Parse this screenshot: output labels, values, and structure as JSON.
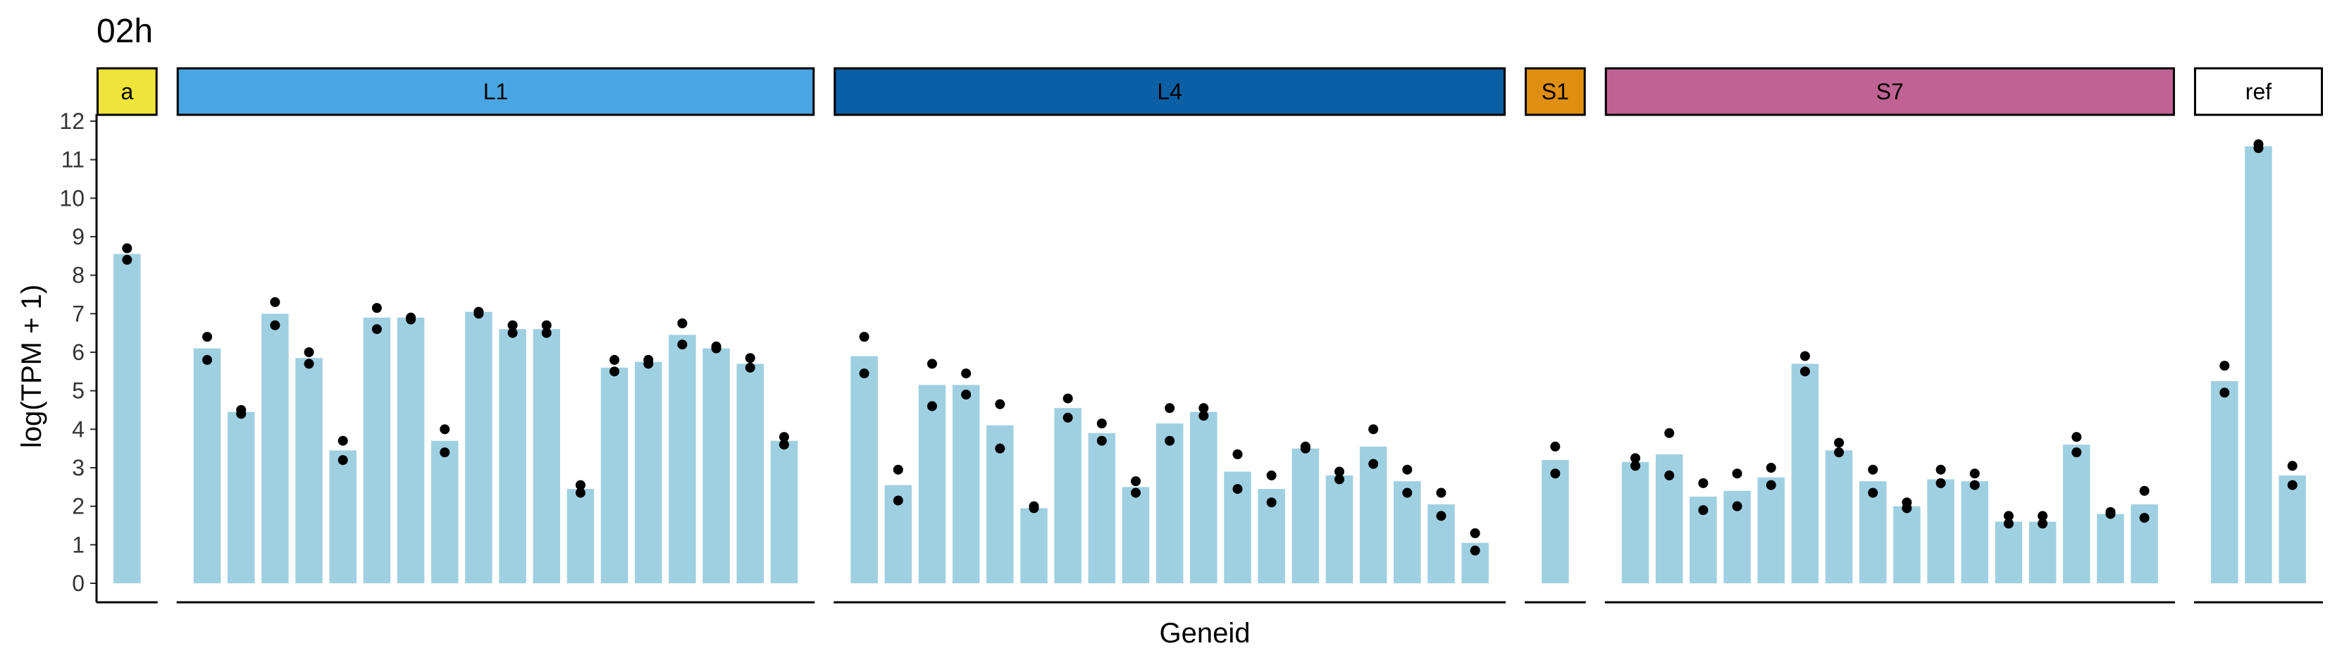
{
  "chart_data": {
    "type": "bar",
    "title": "02h",
    "xlabel": "Geneid",
    "ylabel": "log(TPM + 1)",
    "ylim": [
      0,
      12
    ],
    "yticks": [
      "0",
      "1",
      "2",
      "3",
      "4",
      "5",
      "6",
      "7",
      "8",
      "9",
      "10",
      "11",
      "12"
    ],
    "grid": false,
    "bar_color": "#9fd0e1",
    "point_color": "#000000",
    "panels": [
      {
        "label": "a",
        "strip_color": "#efe43a",
        "strip_text_color": "#000000",
        "bars": [
          {
            "value": 8.55,
            "points": [
              8.4,
              8.7
            ]
          }
        ]
      },
      {
        "label": "L1",
        "strip_color": "#49a6e3",
        "strip_text_color": "#000000",
        "bars": [
          {
            "value": 6.1,
            "points": [
              5.8,
              6.4
            ]
          },
          {
            "value": 4.45,
            "points": [
              4.4,
              4.5
            ]
          },
          {
            "value": 7.0,
            "points": [
              6.7,
              7.3
            ]
          },
          {
            "value": 5.85,
            "points": [
              5.7,
              6.0
            ]
          },
          {
            "value": 3.45,
            "points": [
              3.2,
              3.7
            ]
          },
          {
            "value": 6.9,
            "points": [
              6.6,
              7.15
            ]
          },
          {
            "value": 6.9,
            "points": [
              6.85,
              6.9
            ]
          },
          {
            "value": 3.7,
            "points": [
              3.4,
              4.0
            ]
          },
          {
            "value": 7.05,
            "points": [
              7.0,
              7.05
            ]
          },
          {
            "value": 6.6,
            "points": [
              6.5,
              6.7
            ]
          },
          {
            "value": 6.6,
            "points": [
              6.5,
              6.7
            ]
          },
          {
            "value": 2.45,
            "points": [
              2.35,
              2.55
            ]
          },
          {
            "value": 5.6,
            "points": [
              5.5,
              5.8
            ]
          },
          {
            "value": 5.75,
            "points": [
              5.7,
              5.8
            ]
          },
          {
            "value": 6.45,
            "points": [
              6.2,
              6.75
            ]
          },
          {
            "value": 6.1,
            "points": [
              6.1,
              6.15
            ]
          },
          {
            "value": 5.7,
            "points": [
              5.6,
              5.85
            ]
          },
          {
            "value": 3.7,
            "points": [
              3.6,
              3.8
            ]
          }
        ]
      },
      {
        "label": "L4",
        "strip_color": "#0b5fa4",
        "strip_text_color": "#000000",
        "bars": [
          {
            "value": 5.9,
            "points": [
              5.45,
              6.4
            ]
          },
          {
            "value": 2.55,
            "points": [
              2.15,
              2.95
            ]
          },
          {
            "value": 5.15,
            "points": [
              4.6,
              5.7
            ]
          },
          {
            "value": 5.15,
            "points": [
              4.9,
              5.45
            ]
          },
          {
            "value": 4.1,
            "points": [
              3.5,
              4.65
            ]
          },
          {
            "value": 1.95,
            "points": [
              1.95,
              2.0
            ]
          },
          {
            "value": 4.55,
            "points": [
              4.3,
              4.8
            ]
          },
          {
            "value": 3.9,
            "points": [
              3.7,
              4.15
            ]
          },
          {
            "value": 2.5,
            "points": [
              2.35,
              2.65
            ]
          },
          {
            "value": 4.15,
            "points": [
              3.7,
              4.55
            ]
          },
          {
            "value": 4.45,
            "points": [
              4.35,
              4.55
            ]
          },
          {
            "value": 2.9,
            "points": [
              2.45,
              3.35
            ]
          },
          {
            "value": 2.45,
            "points": [
              2.1,
              2.8
            ]
          },
          {
            "value": 3.5,
            "points": [
              3.5,
              3.55
            ]
          },
          {
            "value": 2.8,
            "points": [
              2.7,
              2.9
            ]
          },
          {
            "value": 3.55,
            "points": [
              3.1,
              4.0
            ]
          },
          {
            "value": 2.65,
            "points": [
              2.35,
              2.95
            ]
          },
          {
            "value": 2.05,
            "points": [
              1.75,
              2.35
            ]
          },
          {
            "value": 1.05,
            "points": [
              0.85,
              1.3
            ]
          }
        ]
      },
      {
        "label": "S1",
        "strip_color": "#df8e0f",
        "strip_text_color": "#000000",
        "bars": [
          {
            "value": 3.2,
            "points": [
              2.85,
              3.55
            ]
          }
        ]
      },
      {
        "label": "S7",
        "strip_color": "#c06394",
        "strip_text_color": "#000000",
        "bars": [
          {
            "value": 3.15,
            "points": [
              3.05,
              3.25
            ]
          },
          {
            "value": 3.35,
            "points": [
              2.8,
              3.9
            ]
          },
          {
            "value": 2.25,
            "points": [
              1.9,
              2.6
            ]
          },
          {
            "value": 2.4,
            "points": [
              2.0,
              2.85
            ]
          },
          {
            "value": 2.75,
            "points": [
              2.55,
              3.0
            ]
          },
          {
            "value": 5.7,
            "points": [
              5.5,
              5.9
            ]
          },
          {
            "value": 3.45,
            "points": [
              3.4,
              3.65
            ]
          },
          {
            "value": 2.65,
            "points": [
              2.35,
              2.95
            ]
          },
          {
            "value": 2.0,
            "points": [
              1.95,
              2.1
            ]
          },
          {
            "value": 2.7,
            "points": [
              2.6,
              2.95
            ]
          },
          {
            "value": 2.65,
            "points": [
              2.55,
              2.85
            ]
          },
          {
            "value": 1.6,
            "points": [
              1.55,
              1.75
            ]
          },
          {
            "value": 1.6,
            "points": [
              1.55,
              1.75
            ]
          },
          {
            "value": 3.6,
            "points": [
              3.4,
              3.8
            ]
          },
          {
            "value": 1.8,
            "points": [
              1.8,
              1.85
            ]
          },
          {
            "value": 2.05,
            "points": [
              1.7,
              2.4
            ]
          }
        ]
      },
      {
        "label": "ref",
        "strip_color": "#ffffff",
        "strip_text_color": "#000000",
        "bars": [
          {
            "value": 5.25,
            "points": [
              4.95,
              5.65
            ]
          },
          {
            "value": 11.35,
            "points": [
              11.3,
              11.4
            ]
          },
          {
            "value": 2.8,
            "points": [
              2.55,
              3.05
            ]
          }
        ]
      }
    ]
  }
}
